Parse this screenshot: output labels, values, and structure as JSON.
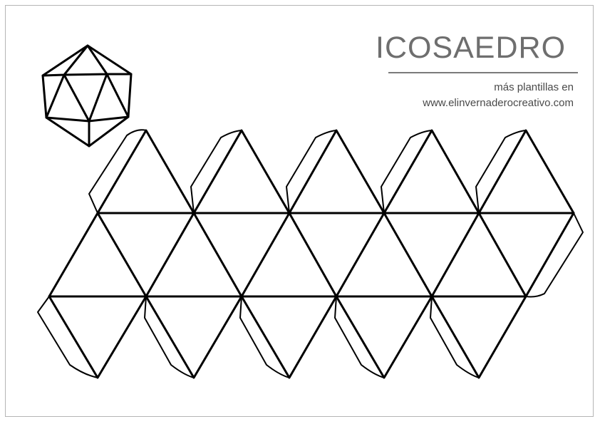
{
  "title": "ICOSAEDRO",
  "subtitle_line1": "más plantillas en",
  "subtitle_line2": "www.elinvernaderocreativo.com",
  "colors": {
    "line": "#000000",
    "title": "#6e6e6e",
    "text": "#4a4a4a",
    "border": "#b5b5b5"
  },
  "diagram": {
    "shape": "icosahedron",
    "net_faces": 20,
    "glue_tabs": 11,
    "preview": "icosahedron-3d-preview"
  }
}
